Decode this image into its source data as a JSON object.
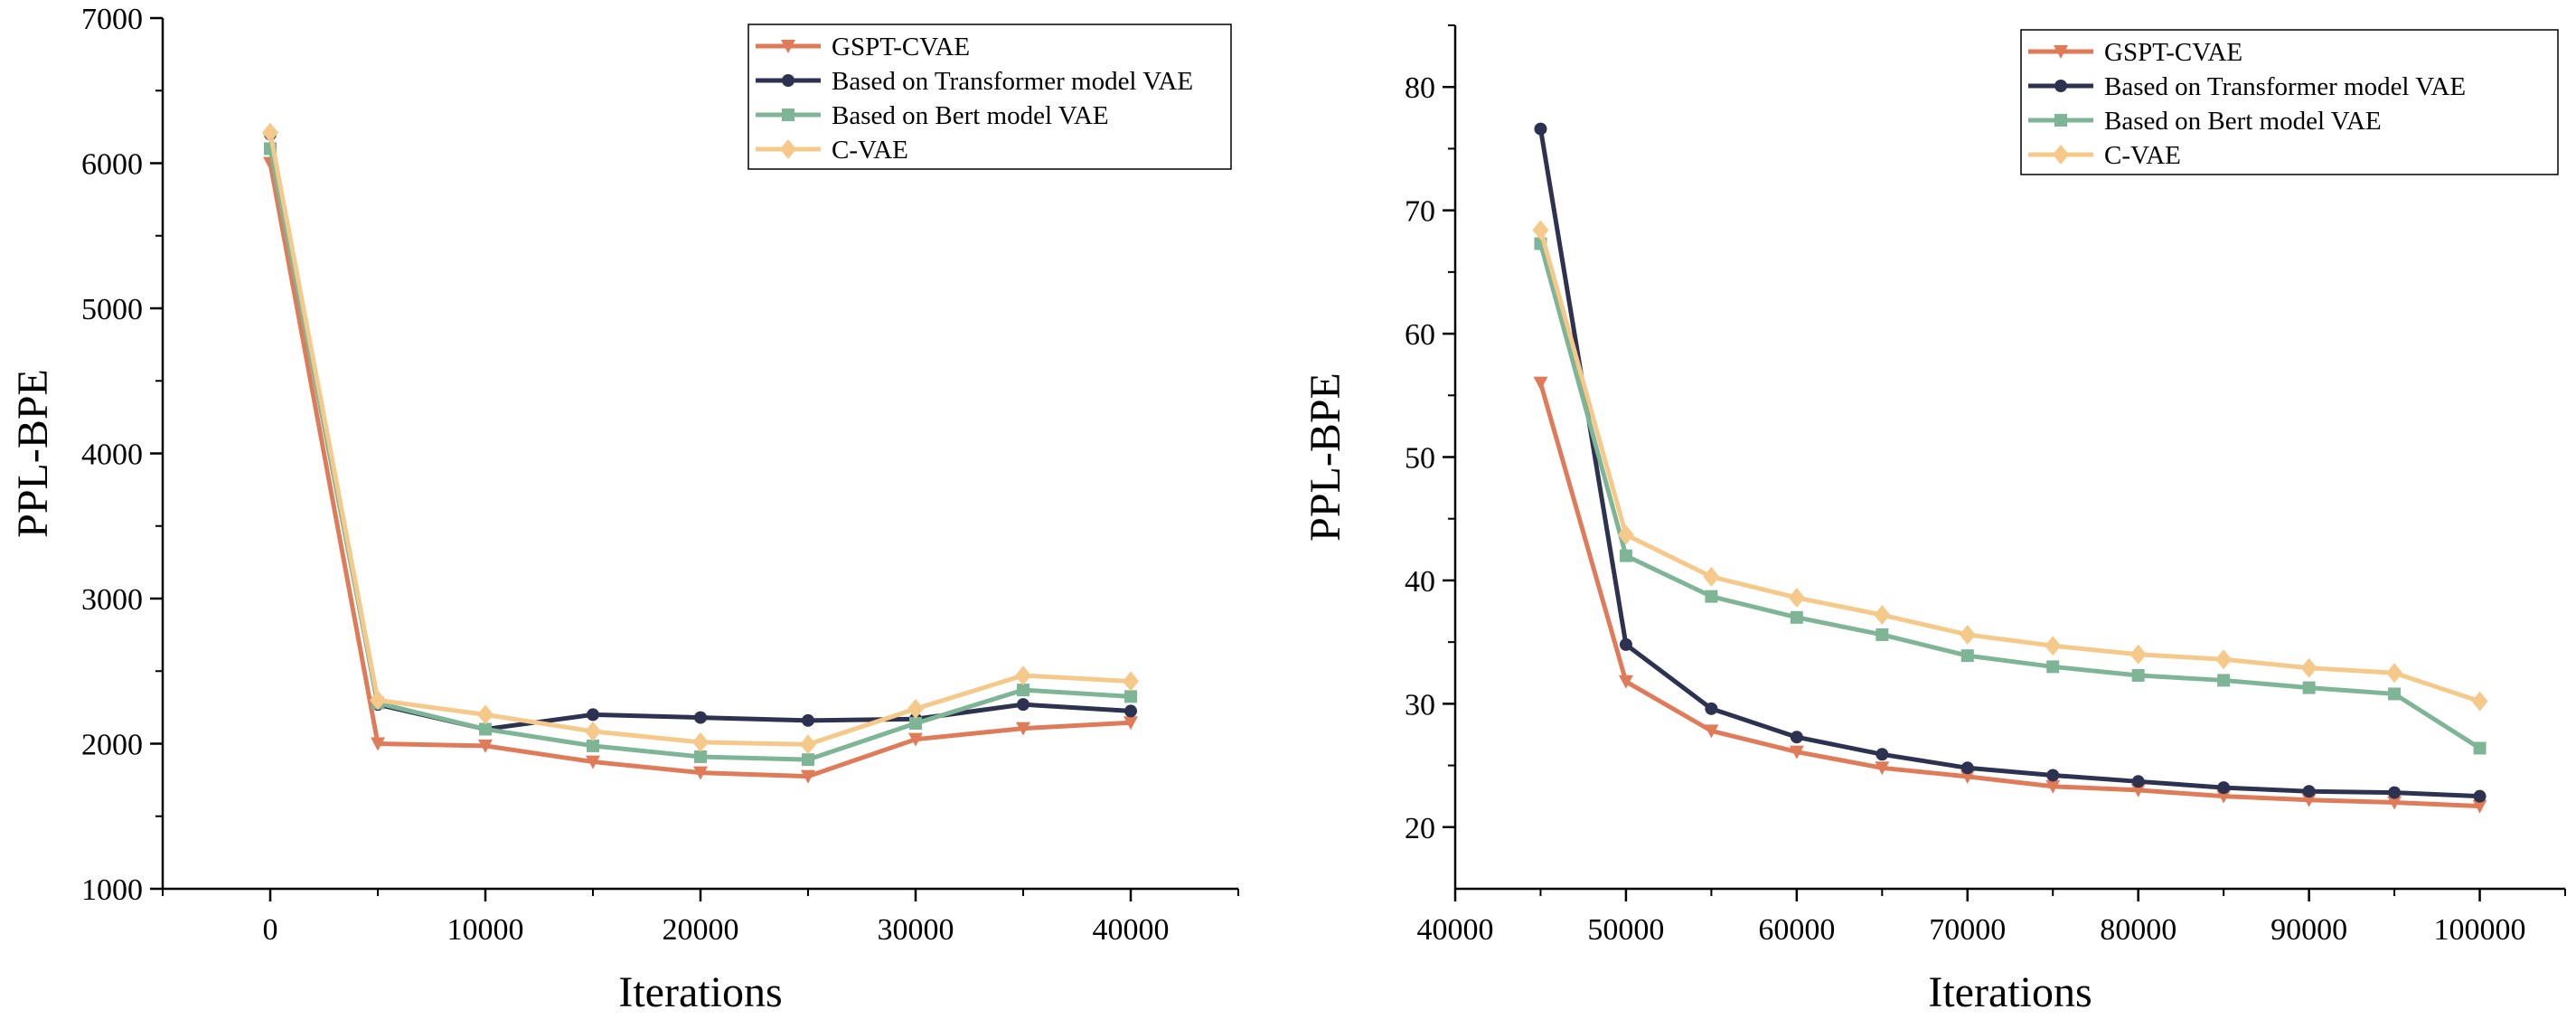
{
  "chart_data": [
    {
      "type": "line",
      "title": "",
      "xlabel": "Iterations",
      "ylabel": "PPL-BPE",
      "xlim": [
        -5000,
        45000
      ],
      "ylim": [
        1000,
        7000
      ],
      "xticks": [
        0,
        10000,
        20000,
        30000,
        40000
      ],
      "yticks": [
        1000,
        2000,
        3000,
        4000,
        5000,
        6000,
        7000
      ],
      "grid": false,
      "legend_position": "top-right",
      "x": [
        0,
        5000,
        10000,
        15000,
        20000,
        25000,
        30000,
        35000,
        40000
      ],
      "series": [
        {
          "name": "GSPT-CVAE",
          "color": "#e07b5a",
          "marker": "triangle-down",
          "values": [
            6000,
            2000,
            1985,
            1875,
            1800,
            1775,
            2030,
            2105,
            2145
          ]
        },
        {
          "name": "Based on Transformer model VAE",
          "color": "#2d3250",
          "marker": "circle",
          "values": [
            6200,
            2270,
            2100,
            2200,
            2180,
            2160,
            2170,
            2270,
            2225
          ]
        },
        {
          "name": "Based on Bert model VAE",
          "color": "#7fb597",
          "marker": "square",
          "values": [
            6100,
            2280,
            2100,
            1985,
            1910,
            1890,
            2140,
            2370,
            2325
          ]
        },
        {
          "name": "C-VAE",
          "color": "#f5c98a",
          "marker": "diamond",
          "values": [
            6210,
            2300,
            2200,
            2085,
            2010,
            1995,
            2240,
            2470,
            2430
          ]
        }
      ]
    },
    {
      "type": "line",
      "title": "",
      "xlabel": "Iterations",
      "ylabel": "PPL-BPE",
      "xlim": [
        40000,
        105000
      ],
      "ylim": [
        15,
        85
      ],
      "xticks": [
        40000,
        50000,
        60000,
        70000,
        80000,
        90000,
        100000
      ],
      "yticks": [
        20,
        30,
        40,
        50,
        60,
        70,
        80
      ],
      "grid": false,
      "legend_position": "top-right",
      "x": [
        45000,
        50000,
        55000,
        60000,
        65000,
        70000,
        75000,
        80000,
        85000,
        90000,
        95000,
        100000
      ],
      "series": [
        {
          "name": "GSPT-CVAE",
          "color": "#e07b5a",
          "marker": "triangle-down",
          "values": [
            56,
            31.8,
            27.8,
            26.1,
            24.8,
            24.1,
            23.3,
            23.0,
            22.5,
            22.2,
            22.0,
            21.7
          ]
        },
        {
          "name": "Based on Transformer model VAE",
          "color": "#2d3250",
          "marker": "circle",
          "values": [
            76.6,
            34.8,
            29.6,
            27.3,
            25.9,
            24.8,
            24.2,
            23.7,
            23.2,
            22.9,
            22.8,
            22.5
          ]
        },
        {
          "name": "Based on Bert model VAE",
          "color": "#7fb597",
          "marker": "square",
          "values": [
            67.3,
            42.0,
            38.7,
            37.0,
            35.6,
            33.9,
            33.0,
            32.3,
            31.9,
            31.3,
            30.8,
            26.4
          ]
        },
        {
          "name": "C-VAE",
          "color": "#f5c98a",
          "marker": "diamond",
          "values": [
            68.4,
            43.7,
            40.3,
            38.6,
            37.2,
            35.6,
            34.7,
            34.0,
            33.6,
            32.9,
            32.5,
            30.2
          ]
        }
      ]
    }
  ]
}
